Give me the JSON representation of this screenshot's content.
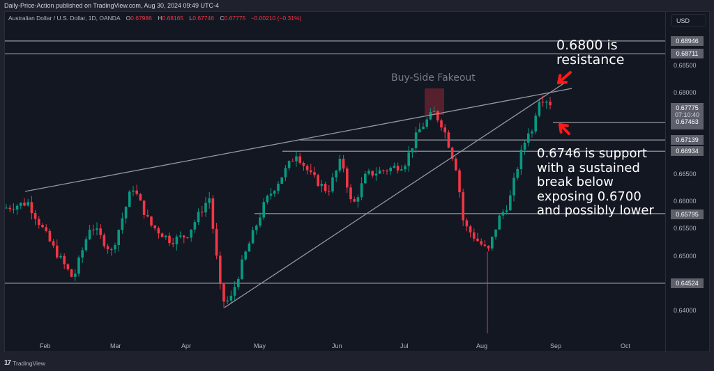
{
  "header": {
    "published": "Daily-Price-Action published on TradingView.com, Aug 30, 2024 09:49 UTC-4",
    "symbol": "Australian Dollar / U.S. Dollar, 1D, OANDA",
    "o_label": "O",
    "o": "0.67986",
    "h_label": "H",
    "h": "0.68165",
    "l_label": "L",
    "l": "0.67746",
    "c_label": "C",
    "c": "0.67775",
    "change": "−0.00210 (−0.31%)"
  },
  "currency_button": "USD",
  "price_axis": {
    "ticks": [
      "0.68500",
      "0.68000",
      "0.66500",
      "0.66000",
      "0.65500",
      "0.65000",
      "0.64000"
    ],
    "level_labels": [
      "0.68946",
      "0.68711",
      "0.67463",
      "0.67139",
      "0.66934",
      "0.65795",
      "0.64524"
    ],
    "last_price": "0.67775",
    "countdown": "07:10:40"
  },
  "time_axis": [
    "Feb",
    "Mar",
    "Apr",
    "May",
    "Jun",
    "Jul",
    "Aug",
    "Sep",
    "Oct"
  ],
  "annotations": {
    "fakeout": "Buy-Side Fakeout",
    "resistance_line1": "0.6800 is",
    "resistance_line2": "resistance",
    "support_lines": [
      "0.6746 is support",
      "with a sustained",
      "break below",
      "exposing 0.6700",
      "and possibly lower"
    ]
  },
  "footer": {
    "brand": "TradingView",
    "logo": "tv-logo-icon"
  },
  "colors": {
    "up": "#089981",
    "down": "#f23645",
    "background": "#131722",
    "level_line": "#9598a1",
    "arrow": "#ff1a1a"
  },
  "chart_data": {
    "type": "candlestick",
    "title": "Australian Dollar / U.S. Dollar, 1D, OANDA",
    "xlabel": "",
    "ylabel": "USD",
    "ylim": [
      0.637,
      0.69
    ],
    "x_ticks": [
      "Feb",
      "Mar",
      "Apr",
      "May",
      "Jun",
      "Jul",
      "Aug",
      "Sep",
      "Oct"
    ],
    "horizontal_levels": [
      0.68946,
      0.68711,
      0.67463,
      0.67139,
      0.66934,
      0.65795,
      0.64524
    ],
    "trendlines": [
      {
        "name": "upper trendline",
        "from": [
          "late Jan",
          0.662
        ],
        "to": [
          "early Sep",
          0.6809
        ]
      },
      {
        "name": "lower trendline",
        "from": [
          "mid Apr",
          0.641
        ],
        "to": [
          "late Aug",
          0.682
        ]
      }
    ],
    "last": {
      "open": 0.67986,
      "high": 0.68165,
      "low": 0.67746,
      "close": 0.67775,
      "change": -0.0021,
      "change_pct": -0.31
    },
    "approx_closes_by_month": {
      "Jan": 0.658,
      "Feb": 0.651,
      "Mar": 0.652,
      "Apr": 0.651,
      "May": 0.662,
      "Jun": 0.667,
      "Jul": 0.654,
      "Aug": 0.678
    },
    "grid": false,
    "legend_position": "top-left"
  }
}
